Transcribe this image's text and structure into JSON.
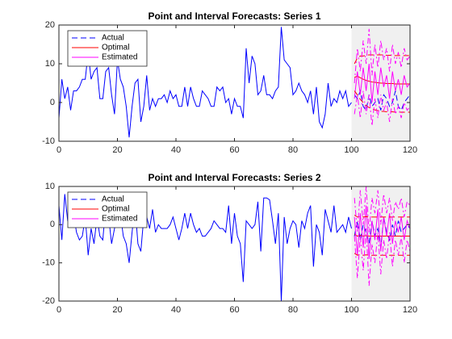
{
  "chart_data": [
    {
      "type": "line",
      "title": "Point and Interval Forecasts: Series 1",
      "xlim": [
        0,
        120
      ],
      "xticks": [
        0,
        20,
        40,
        60,
        80,
        100,
        120
      ],
      "ylim": [
        -10,
        20
      ],
      "yticks": [
        -10,
        0,
        10,
        20
      ],
      "shade": {
        "xlim": [
          100,
          120
        ],
        "color": "#f0f0f0"
      },
      "legend": "upper left",
      "series": [
        {
          "color": "#0000ff",
          "dash": "solid",
          "x": [
            0,
            1,
            2,
            3,
            4,
            5,
            6,
            7,
            8,
            9,
            10,
            11,
            12,
            13,
            14,
            15,
            16,
            17,
            18,
            19,
            20,
            21,
            22,
            23,
            24,
            25,
            26,
            27,
            28,
            29,
            30,
            31,
            32,
            33,
            34,
            35,
            36,
            37,
            38,
            39,
            40,
            41,
            42,
            43,
            44,
            45,
            46,
            47,
            48,
            49,
            50,
            51,
            52,
            53,
            54,
            55,
            56,
            57,
            58,
            59,
            60,
            61,
            62,
            63,
            64,
            65,
            66,
            67,
            68,
            69,
            70,
            71,
            72,
            73,
            74,
            75,
            76,
            77,
            78,
            79,
            80,
            81,
            82,
            83,
            84,
            85,
            86,
            87,
            88,
            89,
            90,
            91,
            92,
            93,
            94,
            95,
            96,
            97,
            98,
            99,
            100
          ],
          "values": [
            -4,
            6,
            1,
            4,
            -2,
            3,
            3,
            4,
            6,
            6,
            13,
            6,
            8,
            9,
            1,
            1,
            8,
            9,
            2,
            -3,
            11,
            6,
            4,
            -1,
            -9,
            -1,
            5,
            6,
            -5,
            -1,
            7,
            -2,
            1,
            -1,
            1,
            1,
            2,
            0,
            3,
            1,
            2,
            -1,
            -1,
            4,
            -1,
            4,
            1,
            -1,
            -1,
            3,
            2,
            1,
            -1,
            -1,
            4,
            3,
            4,
            0,
            1,
            -3,
            1,
            -1,
            -1,
            -4,
            14,
            5,
            12,
            10,
            2,
            3,
            7,
            2,
            2,
            1,
            3,
            4,
            19.5,
            11,
            10,
            9,
            2,
            3,
            5,
            3,
            2,
            0,
            3,
            -3,
            4,
            -5,
            -6.5,
            -3,
            5,
            -1,
            1,
            0,
            3,
            1,
            3,
            -1,
            0
          ]
        },
        {
          "name": "Actual",
          "color": "#0000ff",
          "dash": "dashed",
          "x": [
            101,
            102,
            103,
            104,
            105,
            106,
            107,
            108,
            109,
            110,
            111,
            112,
            113,
            114,
            115,
            116,
            117,
            118,
            119,
            120
          ],
          "values": [
            2,
            1,
            3,
            -1,
            -2,
            2,
            -1,
            0,
            1,
            -2,
            2,
            1,
            -1,
            0,
            3,
            -1,
            -2,
            0,
            1,
            2
          ]
        },
        {
          "name": "Optimal",
          "color": "#ff0000",
          "dash": "solid",
          "x": [
            101,
            102,
            103,
            104,
            105,
            106,
            107,
            108,
            109,
            110,
            111,
            112,
            113,
            114,
            115,
            116,
            117,
            118,
            119,
            120
          ],
          "values": [
            6.5,
            6.8,
            6.4,
            6,
            5.7,
            5.5,
            5.3,
            5.2,
            5.1,
            5,
            5,
            4.9,
            4.9,
            4.9,
            4.8,
            4.8,
            4.8,
            4.8,
            4.8,
            4.8
          ]
        },
        {
          "name": "Estimated",
          "color": "#ff00ff",
          "dash": "solid",
          "x": [
            101,
            102,
            103,
            104,
            105,
            106,
            107,
            108,
            109,
            110,
            111,
            112,
            113,
            114,
            115,
            116,
            117,
            118,
            119,
            120
          ],
          "values": [
            1,
            8,
            2,
            9,
            3,
            10,
            0,
            8,
            2,
            9,
            4,
            7,
            1,
            8,
            3,
            6,
            2,
            7,
            4,
            5
          ]
        },
        {
          "color": "#ff0000",
          "dash": "dashed",
          "x": [
            101,
            102,
            103,
            104,
            105,
            106,
            107,
            108,
            109,
            110,
            111,
            112,
            113,
            114,
            115,
            116,
            117,
            118,
            119,
            120
          ],
          "values": [
            10,
            11.5,
            12,
            12,
            12.2,
            12.3,
            12.3,
            12.3,
            12.3,
            12.3,
            12.3,
            12.2,
            12.2,
            12.2,
            12.1,
            12.1,
            12.1,
            12.1,
            12.1,
            12.1
          ]
        },
        {
          "color": "#ff0000",
          "dash": "dashed",
          "x": [
            101,
            102,
            103,
            104,
            105,
            106,
            107,
            108,
            109,
            110,
            111,
            112,
            113,
            114,
            115,
            116,
            117,
            118,
            119,
            120
          ],
          "values": [
            3,
            2,
            0.8,
            0,
            -0.8,
            -1.3,
            -1.7,
            -1.9,
            -2.1,
            -2.3,
            -2.3,
            -2.4,
            -2.4,
            -2.4,
            -2.5,
            -2.5,
            -2.5,
            -2.5,
            -2.5,
            -2.5
          ]
        },
        {
          "color": "#ff00ff",
          "dash": "dashdot",
          "x": [
            101,
            102,
            103,
            104,
            105,
            106,
            107,
            108,
            109,
            110,
            111,
            112,
            113,
            114,
            115,
            116,
            117,
            118,
            119,
            120
          ],
          "values": [
            5,
            14,
            8,
            16,
            10,
            19,
            7,
            15,
            9,
            16,
            11,
            14,
            8,
            15,
            10,
            13,
            9,
            14,
            11,
            12
          ]
        },
        {
          "color": "#ff00ff",
          "dash": "dashdot",
          "x": [
            101,
            102,
            103,
            104,
            105,
            106,
            107,
            108,
            109,
            110,
            111,
            112,
            113,
            114,
            115,
            116,
            117,
            118,
            119,
            120
          ],
          "values": [
            -3,
            2,
            -4,
            3,
            -3,
            2,
            -6,
            1,
            -4,
            2,
            -2,
            0,
            -5,
            1,
            -3,
            -1,
            -4,
            0,
            -2,
            -1
          ]
        }
      ]
    },
    {
      "type": "line",
      "title": "Point and Interval Forecasts: Series 2",
      "xlim": [
        0,
        120
      ],
      "xticks": [
        0,
        20,
        40,
        60,
        80,
        100,
        120
      ],
      "ylim": [
        -20,
        10
      ],
      "yticks": [
        -20,
        -10,
        0,
        10
      ],
      "shade": {
        "xlim": [
          100,
          120
        ],
        "color": "#f0f0f0"
      },
      "legend": "upper left",
      "series": [
        {
          "color": "#0000ff",
          "dash": "solid",
          "x": [
            0,
            1,
            2,
            3,
            4,
            5,
            6,
            7,
            8,
            9,
            10,
            11,
            12,
            13,
            14,
            15,
            16,
            17,
            18,
            19,
            20,
            21,
            22,
            23,
            24,
            25,
            26,
            27,
            28,
            29,
            30,
            31,
            32,
            33,
            34,
            35,
            36,
            37,
            38,
            39,
            40,
            41,
            42,
            43,
            44,
            45,
            46,
            47,
            48,
            49,
            50,
            51,
            52,
            53,
            54,
            55,
            56,
            57,
            58,
            59,
            60,
            61,
            62,
            63,
            64,
            65,
            66,
            67,
            68,
            69,
            70,
            71,
            72,
            73,
            74,
            75,
            76,
            77,
            78,
            79,
            80,
            81,
            82,
            83,
            84,
            85,
            86,
            87,
            88,
            89,
            90,
            91,
            92,
            93,
            94,
            95,
            96,
            97,
            98,
            99,
            100
          ],
          "values": [
            5,
            -4,
            8,
            1,
            0,
            3,
            -2,
            -4,
            -3,
            2,
            -8,
            -1,
            -5,
            2,
            -3,
            -4,
            5,
            2,
            -5,
            -1,
            5,
            3,
            -3,
            -5,
            -10,
            -2,
            5,
            -5,
            -7,
            2,
            2,
            -1,
            4,
            -2,
            0,
            -1,
            -1,
            -1,
            0,
            2,
            -1,
            -4,
            -1,
            3,
            -1,
            3,
            0,
            -2,
            -1,
            -3,
            -3,
            -2,
            -1,
            1,
            0,
            -1,
            -1,
            -2,
            5,
            -5,
            3,
            -3,
            -5,
            -15,
            1,
            0,
            -1,
            0,
            6,
            -7,
            7,
            7,
            6.5,
            1,
            -5,
            3,
            -20,
            2,
            -5,
            -1,
            1,
            0,
            -6,
            1,
            -1,
            3,
            5,
            -11,
            0,
            -2,
            -8,
            4,
            1,
            -2,
            5,
            -2,
            -1,
            0,
            -2,
            2,
            -1
          ]
        },
        {
          "name": "Actual",
          "color": "#0000ff",
          "dash": "dashed",
          "x": [
            101,
            102,
            103,
            104,
            105,
            106,
            107,
            108,
            109,
            110,
            111,
            112,
            113,
            114,
            115,
            116,
            117,
            118,
            119,
            120
          ],
          "values": [
            -3,
            1,
            -4,
            0,
            -2,
            -5,
            1,
            -3,
            -1,
            -6,
            2,
            -2,
            -4,
            0,
            -3,
            1,
            -2,
            -1,
            0,
            -1
          ]
        },
        {
          "name": "Optimal",
          "color": "#ff0000",
          "dash": "solid",
          "x": [
            101,
            102,
            103,
            104,
            105,
            106,
            107,
            108,
            109,
            110,
            111,
            112,
            113,
            114,
            115,
            116,
            117,
            118,
            119,
            120
          ],
          "values": [
            -2.5,
            -3,
            -2.8,
            -3,
            -2.9,
            -3,
            -3,
            -3,
            -3,
            -3,
            -3,
            -3,
            -3,
            -3,
            -3,
            -3,
            -3,
            -3,
            -3,
            -3
          ]
        },
        {
          "name": "Estimated",
          "color": "#ff00ff",
          "dash": "solid",
          "x": [
            101,
            102,
            103,
            104,
            105,
            106,
            107,
            108,
            109,
            110,
            111,
            112,
            113,
            114,
            115,
            116,
            117,
            118,
            119,
            120
          ],
          "values": [
            2,
            -8,
            3,
            -6,
            5,
            -9,
            1,
            -4,
            4,
            -7,
            2,
            -3,
            3,
            -5,
            1,
            -2,
            2,
            -4,
            1,
            -1
          ]
        },
        {
          "color": "#ff0000",
          "dash": "dashed",
          "x": [
            101,
            102,
            103,
            104,
            105,
            106,
            107,
            108,
            109,
            110,
            111,
            112,
            113,
            114,
            115,
            116,
            117,
            118,
            119,
            120
          ],
          "values": [
            2.5,
            2,
            2.2,
            2,
            2.1,
            2,
            2,
            2,
            2,
            2,
            2,
            2,
            2,
            2,
            2,
            2,
            2,
            2,
            2,
            2
          ]
        },
        {
          "color": "#ff0000",
          "dash": "dashed",
          "x": [
            101,
            102,
            103,
            104,
            105,
            106,
            107,
            108,
            109,
            110,
            111,
            112,
            113,
            114,
            115,
            116,
            117,
            118,
            119,
            120
          ],
          "values": [
            -7.5,
            -8,
            -7.8,
            -8,
            -7.9,
            -8,
            -8,
            -8,
            -8,
            -8,
            -8,
            -8,
            -8,
            -8,
            -8,
            -8,
            -8,
            -8,
            -8,
            -8
          ]
        },
        {
          "color": "#ff00ff",
          "dash": "dashdot",
          "x": [
            101,
            102,
            103,
            104,
            105,
            106,
            107,
            108,
            109,
            110,
            111,
            112,
            113,
            114,
            115,
            116,
            117,
            118,
            119,
            120
          ],
          "values": [
            7,
            -2,
            9,
            0,
            10,
            -2,
            7,
            3,
            9,
            0,
            8,
            3,
            7,
            1,
            6,
            4,
            7,
            2,
            6,
            5
          ]
        },
        {
          "color": "#ff00ff",
          "dash": "dashdot",
          "x": [
            101,
            102,
            103,
            104,
            105,
            106,
            107,
            108,
            109,
            110,
            111,
            112,
            113,
            114,
            115,
            116,
            117,
            118,
            119,
            120
          ],
          "values": [
            -3,
            -14,
            -3,
            -12,
            -1,
            -16,
            -5,
            -10,
            -2,
            -13,
            -4,
            -9,
            -2,
            -11,
            -4,
            -8,
            -3,
            -10,
            -4,
            -7
          ]
        }
      ]
    }
  ]
}
